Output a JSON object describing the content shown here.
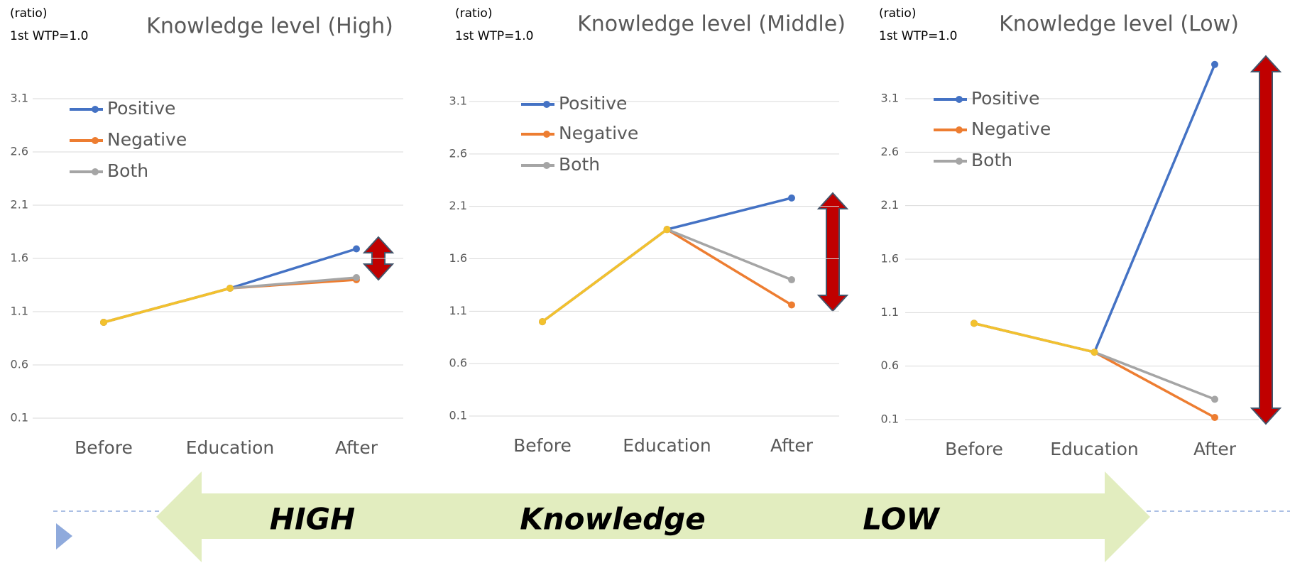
{
  "chart_data": [
    {
      "type": "line",
      "title": "Knowledge level (High)",
      "y_unit": "(ratio)",
      "annotation": "1st WTP=1.0",
      "categories": [
        "Before",
        "Education",
        "After"
      ],
      "ylim": [
        0.1,
        3.1
      ],
      "yticks": [
        0.1,
        0.6,
        1.1,
        1.6,
        2.1,
        2.6,
        3.1
      ],
      "grid": true,
      "series": [
        {
          "name": "Positive",
          "color": "#4472c4",
          "values": [
            1.0,
            1.32,
            1.69
          ]
        },
        {
          "name": "Negative",
          "color": "#ed7d31",
          "values": [
            1.0,
            1.32,
            1.4
          ]
        },
        {
          "name": "Both",
          "color": "#a5a5a5",
          "values": [
            1.0,
            1.32,
            1.42
          ]
        },
        {
          "color": "#f2c12e",
          "values": [
            1.0,
            1.32,
            null
          ]
        }
      ]
    },
    {
      "type": "line",
      "title": "Knowledge level (Middle)",
      "y_unit": "(ratio)",
      "annotation": "1st WTP=1.0",
      "categories": [
        "Before",
        "Education",
        "After"
      ],
      "ylim": [
        0.1,
        3.1
      ],
      "yticks": [
        0.1,
        0.6,
        1.1,
        1.6,
        2.1,
        2.6,
        3.1
      ],
      "grid": true,
      "series": [
        {
          "name": "Positive",
          "color": "#4472c4",
          "values": [
            1.0,
            1.88,
            2.18
          ]
        },
        {
          "name": "Negative",
          "color": "#ed7d31",
          "values": [
            1.0,
            1.88,
            1.16
          ]
        },
        {
          "name": "Both",
          "color": "#a5a5a5",
          "values": [
            1.0,
            1.88,
            1.4
          ]
        },
        {
          "color": "#f2c12e",
          "values": [
            1.0,
            1.88,
            null
          ]
        }
      ]
    },
    {
      "type": "line",
      "title": "Knowledge level (Low)",
      "y_unit": "(ratio)",
      "annotation": "1st WTP=1.0",
      "categories": [
        "Before",
        "Education",
        "After"
      ],
      "ylim": [
        0.1,
        3.1
      ],
      "yticks": [
        0.1,
        0.6,
        1.1,
        1.6,
        2.1,
        2.6,
        3.1
      ],
      "grid": true,
      "series": [
        {
          "name": "Positive",
          "color": "#4472c4",
          "values": [
            1.0,
            0.73,
            3.42
          ]
        },
        {
          "name": "Negative",
          "color": "#ed7d31",
          "values": [
            1.0,
            0.73,
            0.12
          ]
        },
        {
          "name": "Both",
          "color": "#a5a5a5",
          "values": [
            1.0,
            0.73,
            0.29
          ]
        },
        {
          "color": "#f2c12e",
          "values": [
            1.0,
            0.73,
            null
          ]
        }
      ]
    }
  ],
  "banner": {
    "left": "HIGH",
    "middle": "Knowledge",
    "right": "LOW"
  }
}
